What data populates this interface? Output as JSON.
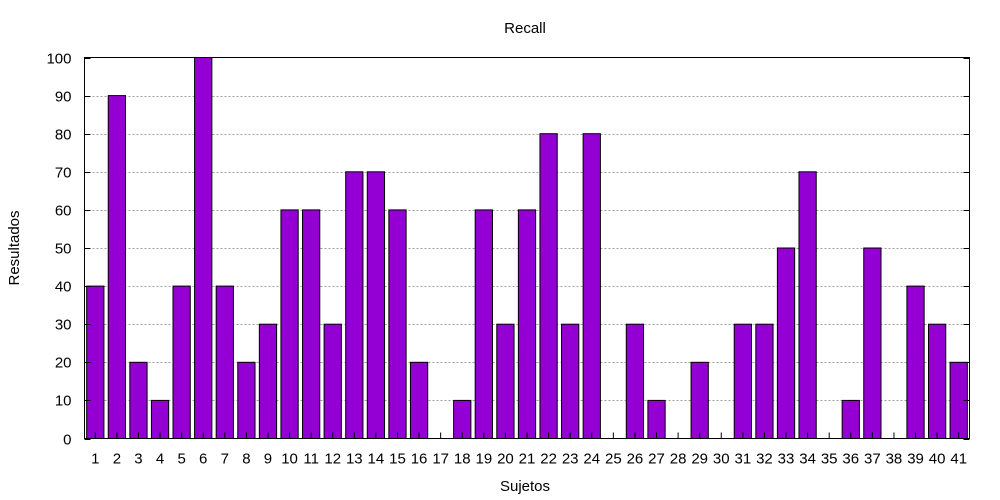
{
  "chart_data": {
    "type": "bar",
    "title": "Recall",
    "xlabel": "Sujetos",
    "ylabel": "Resultados",
    "ylim": [
      0,
      100
    ],
    "yticks": [
      0,
      10,
      20,
      30,
      40,
      50,
      60,
      70,
      80,
      90,
      100
    ],
    "grid": true,
    "bar_color": "#9400D3",
    "categories": [
      "1",
      "2",
      "3",
      "4",
      "5",
      "6",
      "7",
      "8",
      "9",
      "10",
      "11",
      "12",
      "13",
      "14",
      "15",
      "16",
      "17",
      "18",
      "19",
      "20",
      "21",
      "22",
      "23",
      "24",
      "25",
      "26",
      "27",
      "28",
      "29",
      "30",
      "31",
      "32",
      "33",
      "34",
      "35",
      "36",
      "37",
      "38",
      "39",
      "40",
      "41"
    ],
    "values": [
      40,
      90,
      20,
      10,
      40,
      100,
      40,
      20,
      30,
      60,
      60,
      30,
      70,
      70,
      60,
      20,
      0,
      10,
      60,
      30,
      60,
      80,
      30,
      80,
      0,
      30,
      10,
      0,
      20,
      0,
      30,
      30,
      50,
      70,
      0,
      10,
      50,
      0,
      40,
      30,
      20
    ]
  }
}
